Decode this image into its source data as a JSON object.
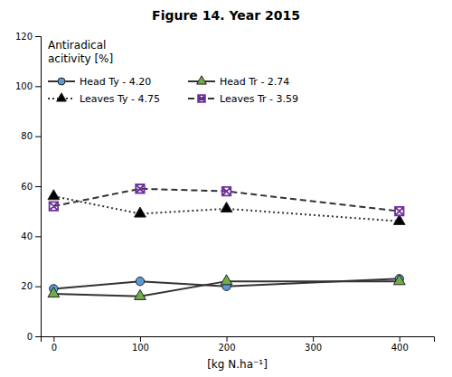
{
  "chart_data": {
    "type": "line",
    "title": "Figure 14. Year 2015",
    "xlabel": "[kg N.ha⁻¹]",
    "ylabel": "Antiradical\nacitivity [%]",
    "x": [
      0,
      100,
      200,
      400
    ],
    "series": [
      {
        "name": "Head Ty - 4.20",
        "color": "#5b9bd5",
        "marker": "circle",
        "line_style": "solid",
        "values": [
          19,
          22,
          20,
          23
        ]
      },
      {
        "name": "Head Tr - 2.74",
        "color": "#70ad47",
        "marker": "triangle",
        "line_style": "solid",
        "values": [
          17,
          16,
          22,
          22
        ]
      },
      {
        "name": "Leaves Ty - 4.75",
        "color": "#000000",
        "marker": "triangle",
        "line_style": "dotted",
        "values": [
          56,
          49,
          51,
          46
        ]
      },
      {
        "name": "Leaves Tr - 3.59",
        "color": "#7030a0",
        "marker": "square-x",
        "line_style": "dashed",
        "values": [
          52,
          59,
          58,
          50
        ]
      }
    ],
    "xlim": [
      -15,
      440
    ],
    "xticks": [
      0,
      100,
      200,
      300,
      400
    ],
    "ylim": [
      0,
      120
    ],
    "yticks": [
      0,
      20,
      40,
      60,
      80,
      100,
      120
    ],
    "legend": "upper left"
  }
}
